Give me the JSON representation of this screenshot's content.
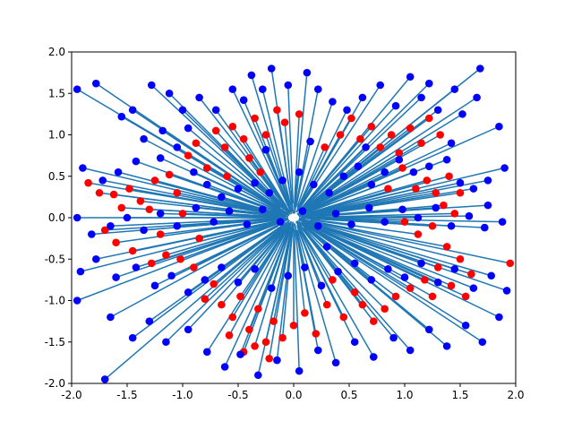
{
  "chart_data": {
    "type": "scatter",
    "title": "",
    "xlabel": "",
    "ylabel": "",
    "xlim": [
      -2.0,
      2.0
    ],
    "ylim": [
      -2.0,
      2.0
    ],
    "grid": false,
    "legend": "none",
    "x_ticks": [
      "-2.0",
      "-1.5",
      "-1.0",
      "-0.5",
      "0.0",
      "0.5",
      "1.0",
      "1.5",
      "2.0"
    ],
    "y_ticks": [
      "-2.0",
      "-1.5",
      "-1.0",
      "-0.5",
      "0.0",
      "0.5",
      "1.0",
      "1.5",
      "2.0"
    ],
    "colors": {
      "line": "#1f77b4",
      "point_red": "#ff0000",
      "point_blue": "#0000ff",
      "axes": "#000000"
    },
    "series": [
      {
        "marker": "red",
        "points": [
          [
            -1.85,
            0.42
          ],
          [
            -1.75,
            0.3
          ],
          [
            -1.62,
            0.28
          ],
          [
            -1.48,
            0.35
          ],
          [
            -1.38,
            0.2
          ],
          [
            -1.25,
            0.45
          ],
          [
            -1.12,
            0.52
          ],
          [
            -1.05,
            0.3
          ],
          [
            -1.55,
            0.12
          ],
          [
            -1.3,
            0.1
          ],
          [
            -1.6,
            -0.3
          ],
          [
            -1.45,
            -0.4
          ],
          [
            -1.28,
            -0.55
          ],
          [
            -1.15,
            -0.45
          ],
          [
            -1.02,
            -0.5
          ],
          [
            -0.9,
            -0.6
          ],
          [
            -1.7,
            -0.15
          ],
          [
            -1.2,
            -0.2
          ],
          [
            -0.95,
            0.75
          ],
          [
            -0.88,
            0.9
          ],
          [
            -0.78,
            0.6
          ],
          [
            -0.7,
            1.05
          ],
          [
            -0.62,
            0.85
          ],
          [
            -0.55,
            1.1
          ],
          [
            -0.45,
            0.95
          ],
          [
            -0.35,
            1.2
          ],
          [
            -0.25,
            1.0
          ],
          [
            -0.15,
            1.3
          ],
          [
            -0.08,
            1.15
          ],
          [
            0.05,
            1.25
          ],
          [
            -0.4,
            0.72
          ],
          [
            -0.6,
            0.5
          ],
          [
            -0.72,
            -0.8
          ],
          [
            -0.65,
            -1.05
          ],
          [
            -0.55,
            -1.2
          ],
          [
            -0.48,
            -0.95
          ],
          [
            -0.4,
            -1.35
          ],
          [
            -0.32,
            -1.1
          ],
          [
            -0.25,
            -1.5
          ],
          [
            -0.18,
            -1.25
          ],
          [
            -0.45,
            -1.62
          ],
          [
            -0.35,
            -1.55
          ],
          [
            -0.22,
            -1.7
          ],
          [
            -0.1,
            -1.45
          ],
          [
            0.0,
            -1.3
          ],
          [
            0.1,
            -1.15
          ],
          [
            0.2,
            -1.4
          ],
          [
            0.3,
            -1.05
          ],
          [
            -0.8,
            -0.98
          ],
          [
            -0.58,
            -1.42
          ],
          [
            0.42,
            1.0
          ],
          [
            0.52,
            1.2
          ],
          [
            0.6,
            0.95
          ],
          [
            0.7,
            1.1
          ],
          [
            0.78,
            0.85
          ],
          [
            0.88,
            1.0
          ],
          [
            0.95,
            0.78
          ],
          [
            1.05,
            1.08
          ],
          [
            1.15,
            0.9
          ],
          [
            1.22,
            1.2
          ],
          [
            1.32,
            1.0
          ],
          [
            0.98,
            0.6
          ],
          [
            1.1,
            0.35
          ],
          [
            1.2,
            0.45
          ],
          [
            1.28,
            0.3
          ],
          [
            1.35,
            0.15
          ],
          [
            1.45,
            0.05
          ],
          [
            1.25,
            -0.1
          ],
          [
            1.12,
            -0.2
          ],
          [
            1.0,
            -0.05
          ],
          [
            1.38,
            -0.35
          ],
          [
            1.5,
            -0.5
          ],
          [
            1.3,
            -0.6
          ],
          [
            1.18,
            -0.75
          ],
          [
            1.05,
            -0.85
          ],
          [
            1.42,
            -0.82
          ],
          [
            1.6,
            -0.68
          ],
          [
            1.55,
            -0.95
          ],
          [
            1.25,
            -0.95
          ],
          [
            0.92,
            -0.95
          ],
          [
            0.82,
            -1.1
          ],
          [
            0.72,
            -1.25
          ],
          [
            0.55,
            -0.9
          ],
          [
            0.45,
            -1.2
          ],
          [
            0.62,
            -1.05
          ],
          [
            1.95,
            -0.55
          ],
          [
            1.4,
            0.5
          ],
          [
            0.85,
            0.35
          ],
          [
            -1.0,
            0.05
          ],
          [
            -0.3,
            0.55
          ],
          [
            0.28,
            0.85
          ],
          [
            0.35,
            -0.75
          ],
          [
            -0.85,
            -0.25
          ],
          [
            1.5,
            0.3
          ]
        ]
      },
      {
        "marker": "blue",
        "points": [
          [
            -1.95,
            1.55
          ],
          [
            -1.78,
            1.62
          ],
          [
            -1.55,
            1.22
          ],
          [
            -1.35,
            0.95
          ],
          [
            -1.18,
            1.05
          ],
          [
            -1.28,
            1.6
          ],
          [
            -1.12,
            1.5
          ],
          [
            -1.0,
            1.3
          ],
          [
            -0.85,
            1.45
          ],
          [
            -0.7,
            1.3
          ],
          [
            -0.55,
            1.55
          ],
          [
            -0.45,
            1.42
          ],
          [
            -0.38,
            1.72
          ],
          [
            -0.28,
            1.55
          ],
          [
            -0.2,
            1.8
          ],
          [
            -0.05,
            1.6
          ],
          [
            0.12,
            1.75
          ],
          [
            0.22,
            1.55
          ],
          [
            0.35,
            1.4
          ],
          [
            0.48,
            1.3
          ],
          [
            0.62,
            1.45
          ],
          [
            0.78,
            1.6
          ],
          [
            0.92,
            1.35
          ],
          [
            1.05,
            1.7
          ],
          [
            1.15,
            1.45
          ],
          [
            1.22,
            1.62
          ],
          [
            1.3,
            1.3
          ],
          [
            1.45,
            1.55
          ],
          [
            1.52,
            1.25
          ],
          [
            1.65,
            1.45
          ],
          [
            1.68,
            1.8
          ],
          [
            1.85,
            1.1
          ],
          [
            -1.9,
            0.6
          ],
          [
            -1.72,
            0.45
          ],
          [
            -1.58,
            0.55
          ],
          [
            -1.42,
            0.68
          ],
          [
            -1.2,
            0.72
          ],
          [
            -1.05,
            0.85
          ],
          [
            -0.9,
            0.55
          ],
          [
            -0.78,
            0.4
          ],
          [
            -0.65,
            0.25
          ],
          [
            -0.5,
            0.35
          ],
          [
            -0.35,
            0.42
          ],
          [
            -0.22,
            0.3
          ],
          [
            -0.1,
            0.45
          ],
          [
            0.05,
            0.55
          ],
          [
            0.18,
            0.4
          ],
          [
            0.32,
            0.3
          ],
          [
            0.45,
            0.5
          ],
          [
            0.58,
            0.62
          ],
          [
            0.7,
            0.4
          ],
          [
            0.82,
            0.55
          ],
          [
            0.95,
            0.7
          ],
          [
            1.08,
            0.55
          ],
          [
            1.22,
            0.62
          ],
          [
            1.38,
            0.7
          ],
          [
            1.5,
            0.42
          ],
          [
            1.62,
            0.35
          ],
          [
            1.75,
            0.45
          ],
          [
            1.9,
            0.6
          ],
          [
            -1.95,
            0.0
          ],
          [
            -1.82,
            -0.2
          ],
          [
            -1.65,
            -0.1
          ],
          [
            -1.5,
            0.0
          ],
          [
            -1.35,
            -0.15
          ],
          [
            -1.2,
            0.05
          ],
          [
            -1.05,
            -0.1
          ],
          [
            -0.88,
            0.12
          ],
          [
            -0.72,
            -0.05
          ],
          [
            -0.58,
            0.08
          ],
          [
            -0.42,
            -0.08
          ],
          [
            -0.28,
            0.1
          ],
          [
            -0.12,
            -0.05
          ],
          [
            0.08,
            0.08
          ],
          [
            0.22,
            -0.1
          ],
          [
            0.38,
            0.05
          ],
          [
            0.52,
            -0.08
          ],
          [
            0.68,
            0.12
          ],
          [
            0.82,
            -0.05
          ],
          [
            0.98,
            0.1
          ],
          [
            1.12,
            0.0
          ],
          [
            1.28,
            0.12
          ],
          [
            1.42,
            -0.1
          ],
          [
            1.58,
            0.02
          ],
          [
            1.72,
            -0.12
          ],
          [
            1.88,
            -0.05
          ],
          [
            -1.92,
            -0.65
          ],
          [
            -1.78,
            -0.5
          ],
          [
            -1.6,
            -0.72
          ],
          [
            -1.42,
            -0.6
          ],
          [
            -1.25,
            -0.82
          ],
          [
            -1.1,
            -0.7
          ],
          [
            -0.95,
            -0.9
          ],
          [
            -0.8,
            -0.75
          ],
          [
            -0.65,
            -0.6
          ],
          [
            -0.5,
            -0.78
          ],
          [
            -0.35,
            -0.62
          ],
          [
            -0.2,
            -0.85
          ],
          [
            -0.05,
            -0.7
          ],
          [
            0.1,
            -0.6
          ],
          [
            0.25,
            -0.82
          ],
          [
            0.4,
            -0.65
          ],
          [
            0.55,
            -0.55
          ],
          [
            0.7,
            -0.75
          ],
          [
            0.85,
            -0.62
          ],
          [
            1.0,
            -0.72
          ],
          [
            1.15,
            -0.55
          ],
          [
            1.3,
            -0.78
          ],
          [
            1.45,
            -0.62
          ],
          [
            1.62,
            -0.85
          ],
          [
            1.78,
            -0.7
          ],
          [
            1.92,
            -0.88
          ],
          [
            -1.95,
            -1.0
          ],
          [
            -1.65,
            -1.2
          ],
          [
            -1.45,
            -1.45
          ],
          [
            -1.3,
            -1.25
          ],
          [
            -1.15,
            -1.5
          ],
          [
            -0.95,
            -1.35
          ],
          [
            -0.78,
            -1.62
          ],
          [
            -0.62,
            -1.8
          ],
          [
            -0.48,
            -1.65
          ],
          [
            -0.32,
            -1.9
          ],
          [
            -0.15,
            -1.72
          ],
          [
            0.05,
            -1.85
          ],
          [
            0.22,
            -1.6
          ],
          [
            0.38,
            -1.75
          ],
          [
            0.55,
            -1.5
          ],
          [
            0.72,
            -1.68
          ],
          [
            0.9,
            -1.45
          ],
          [
            1.05,
            -1.6
          ],
          [
            1.22,
            -1.35
          ],
          [
            1.38,
            -1.55
          ],
          [
            1.55,
            -1.3
          ],
          [
            1.7,
            -1.5
          ],
          [
            1.85,
            -1.2
          ],
          [
            -1.7,
            -1.95
          ],
          [
            -1.45,
            1.3
          ],
          [
            -0.95,
            1.08
          ],
          [
            -0.25,
            0.82
          ],
          [
            0.15,
            0.92
          ],
          [
            0.65,
            0.85
          ],
          [
            1.42,
            0.9
          ],
          [
            1.75,
            0.15
          ],
          [
            0.3,
            -0.35
          ]
        ]
      }
    ]
  }
}
